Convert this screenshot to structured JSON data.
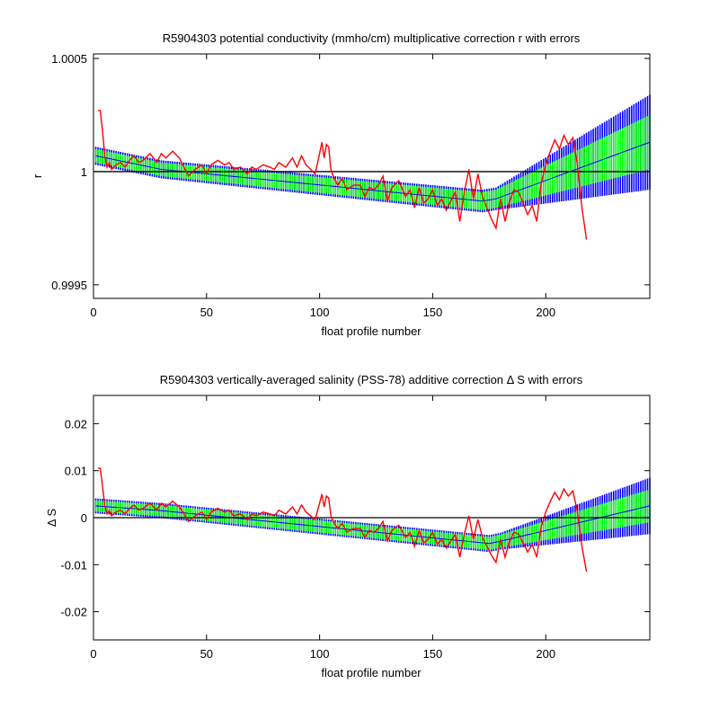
{
  "chart_data": [
    {
      "type": "line",
      "title": "R5904303 potential conductivity (mmho/cm) multiplicative correction r with errors",
      "xlabel": "float profile number",
      "ylabel": "r",
      "xlim": [
        0,
        246
      ],
      "ylim": [
        0.99944,
        1.00052
      ],
      "xticks": [
        0,
        50,
        100,
        150,
        200
      ],
      "xtick_labels": [
        "0",
        "50",
        "100",
        "150",
        "200"
      ],
      "yticks": [
        0.9995,
        1,
        1.0005
      ],
      "ytick_labels": [
        "0.9995",
        "1",
        "1.0005"
      ],
      "reference_line": 1,
      "grid": false,
      "legend": "none",
      "colors": {
        "band_outer": "#0000ff",
        "band_inner": "#00ff00",
        "raw": "#ff0000",
        "reference": "#000000"
      },
      "series": [
        {
          "kind": "fit_with_errors",
          "x": [
            1,
            30,
            172,
            178,
            246
          ],
          "fit": [
            1.00007,
            1.00001,
            0.99987,
            0.99988,
            1.00013
          ],
          "inner_err": [
            3e-05,
            3e-05,
            4e-05,
            4e-05,
            0.00012
          ],
          "outer_err": [
            4e-05,
            4e-05,
            5e-05,
            5e-05,
            0.00021
          ]
        },
        {
          "kind": "raw",
          "x": [
            2,
            3,
            4,
            5,
            6,
            7,
            8,
            10,
            12,
            14,
            16,
            18,
            20,
            22,
            25,
            28,
            30,
            32,
            35,
            38,
            40,
            42,
            45,
            48,
            50,
            52,
            55,
            58,
            60,
            62,
            65,
            68,
            70,
            72,
            75,
            78,
            80,
            82,
            85,
            88,
            90,
            92,
            94,
            96,
            98,
            100,
            101,
            102,
            103,
            104,
            105,
            106,
            108,
            110,
            112,
            115,
            118,
            120,
            122,
            124,
            126,
            128,
            130,
            132,
            135,
            138,
            140,
            142,
            144,
            146,
            148,
            150,
            152,
            154,
            156,
            158,
            160,
            162,
            164,
            166,
            168,
            170,
            172,
            174,
            176,
            178,
            180,
            182,
            184,
            186,
            188,
            190,
            192,
            194,
            196,
            198,
            200,
            202,
            204,
            206,
            208,
            210,
            212,
            214,
            216,
            218
          ],
          "y": [
            1.00027,
            1.00027,
            1.00018,
            1.00007,
            1.00002,
            1.00004,
            1.00001,
            1.00003,
            1.00004,
            1.00002,
            1.00005,
            1.00007,
            1.00004,
            1.00005,
            1.00008,
            1.00004,
            1.00008,
            1.00006,
            1.00009,
            1.00006,
            1.00002,
            0.99998,
            1.00001,
            1.00003,
            0.99999,
            1.00003,
            1.00005,
            1.00003,
            1.00004,
            1.00001,
            1.00002,
            0.99999,
            1.00002,
            1.00001,
            1.00003,
            1.00002,
            1.00001,
            1.00004,
            1.00002,
            1.00006,
            1.00002,
            1.00007,
            1.00003,
            1.00001,
            0.99999,
            1.00008,
            1.00013,
            1.00006,
            1.00012,
            1.00011,
            1.00001,
            0.99998,
            0.99994,
            0.99997,
            0.99992,
            0.99994,
            0.99994,
            0.99989,
            0.99993,
            0.99992,
            0.99994,
            0.99998,
            0.99987,
            0.99993,
            0.99996,
            0.99989,
            0.99992,
            0.99984,
            0.99993,
            0.99986,
            0.99988,
            0.99992,
            0.99985,
            0.99988,
            0.99983,
            0.99987,
            0.99991,
            0.99978,
            0.99991,
            1.00001,
            0.99988,
            0.99999,
            0.99989,
            0.99984,
            0.99979,
            0.99975,
            0.99988,
            0.99978,
            0.99987,
            0.99992,
            0.99991,
            0.99986,
            0.99981,
            0.99985,
            0.99978,
            0.99995,
            1.00003,
            1.00009,
            1.00014,
            1.0001,
            1.00016,
            1.00012,
            1.00015,
            1.00003,
            0.99984,
            0.9997
          ]
        }
      ]
    },
    {
      "type": "line",
      "title": "R5904303 vertically-averaged salinity (PSS-78) additive correction Δ S with errors",
      "xlabel": "float profile number",
      "ylabel": "Δ S",
      "xlim": [
        0,
        246
      ],
      "ylim": [
        -0.026,
        0.026
      ],
      "xticks": [
        0,
        50,
        100,
        150,
        200
      ],
      "xtick_labels": [
        "0",
        "50",
        "100",
        "150",
        "200"
      ],
      "yticks": [
        -0.02,
        -0.01,
        0,
        0.01,
        0.02
      ],
      "ytick_labels": [
        "-0.02",
        "-0.01",
        "0",
        "0.01",
        "0.02"
      ],
      "reference_line": 0,
      "grid": false,
      "legend": "none",
      "colors": {
        "band_outer": "#0000ff",
        "band_inner": "#00ff00",
        "raw": "#ff0000",
        "reference": "#000000"
      },
      "series": [
        {
          "kind": "fit_with_errors",
          "x": [
            1,
            30,
            175,
            180,
            246
          ],
          "fit": [
            0.0025,
            0.0015,
            -0.0055,
            -0.005,
            0.0025
          ],
          "inner_err": [
            0.0012,
            0.0012,
            0.0014,
            0.0014,
            0.0035
          ],
          "outer_err": [
            0.0016,
            0.0016,
            0.0018,
            0.0018,
            0.006
          ]
        },
        {
          "kind": "raw",
          "x": [
            2,
            3,
            4,
            5,
            6,
            7,
            8,
            10,
            12,
            14,
            16,
            18,
            20,
            22,
            25,
            28,
            30,
            32,
            35,
            38,
            40,
            42,
            45,
            48,
            50,
            52,
            55,
            58,
            60,
            62,
            65,
            68,
            70,
            72,
            75,
            78,
            80,
            82,
            85,
            88,
            90,
            92,
            94,
            96,
            98,
            100,
            101,
            102,
            103,
            104,
            105,
            106,
            108,
            110,
            112,
            115,
            118,
            120,
            122,
            124,
            126,
            128,
            130,
            132,
            135,
            138,
            140,
            142,
            144,
            146,
            148,
            150,
            152,
            154,
            156,
            158,
            160,
            162,
            164,
            166,
            168,
            170,
            172,
            174,
            176,
            178,
            180,
            182,
            184,
            186,
            188,
            190,
            192,
            194,
            196,
            198,
            200,
            202,
            204,
            206,
            208,
            210,
            212,
            214,
            216,
            218
          ],
          "y": [
            0.0105,
            0.0105,
            0.0068,
            0.0025,
            0.0008,
            0.0015,
            0.0004,
            0.0012,
            0.0016,
            0.0008,
            0.002,
            0.0027,
            0.0016,
            0.002,
            0.0031,
            0.0016,
            0.0031,
            0.0023,
            0.0035,
            0.0023,
            0.0008,
            -0.0008,
            0.0004,
            0.0012,
            -0.0004,
            0.0012,
            0.002,
            0.0012,
            0.0016,
            0.0004,
            0.0008,
            -0.0004,
            0.0008,
            0.0004,
            0.0012,
            0.0008,
            0.0004,
            0.0016,
            0.0008,
            0.0023,
            0.0008,
            0.0027,
            0.0012,
            0.0004,
            -0.0004,
            0.0031,
            0.005,
            0.0023,
            0.0046,
            0.0042,
            0.0004,
            -0.0008,
            -0.0023,
            -0.0012,
            -0.0031,
            -0.0023,
            -0.0023,
            -0.0042,
            -0.0027,
            -0.0031,
            -0.0023,
            -0.0008,
            -0.005,
            -0.0027,
            -0.0016,
            -0.0042,
            -0.0031,
            -0.0061,
            -0.0027,
            -0.0054,
            -0.0046,
            -0.0031,
            -0.0057,
            -0.0046,
            -0.0065,
            -0.005,
            -0.0035,
            -0.0084,
            -0.0035,
            0.0004,
            -0.0046,
            -0.0004,
            -0.0042,
            -0.0061,
            -0.008,
            -0.0095,
            -0.0046,
            -0.0084,
            -0.005,
            -0.0031,
            -0.0035,
            -0.0054,
            -0.0073,
            -0.0057,
            -0.0084,
            -0.0019,
            0.0012,
            0.0035,
            0.0054,
            0.0038,
            0.0061,
            0.0046,
            0.0057,
            0.0012,
            -0.0061,
            -0.0115
          ]
        }
      ]
    }
  ]
}
